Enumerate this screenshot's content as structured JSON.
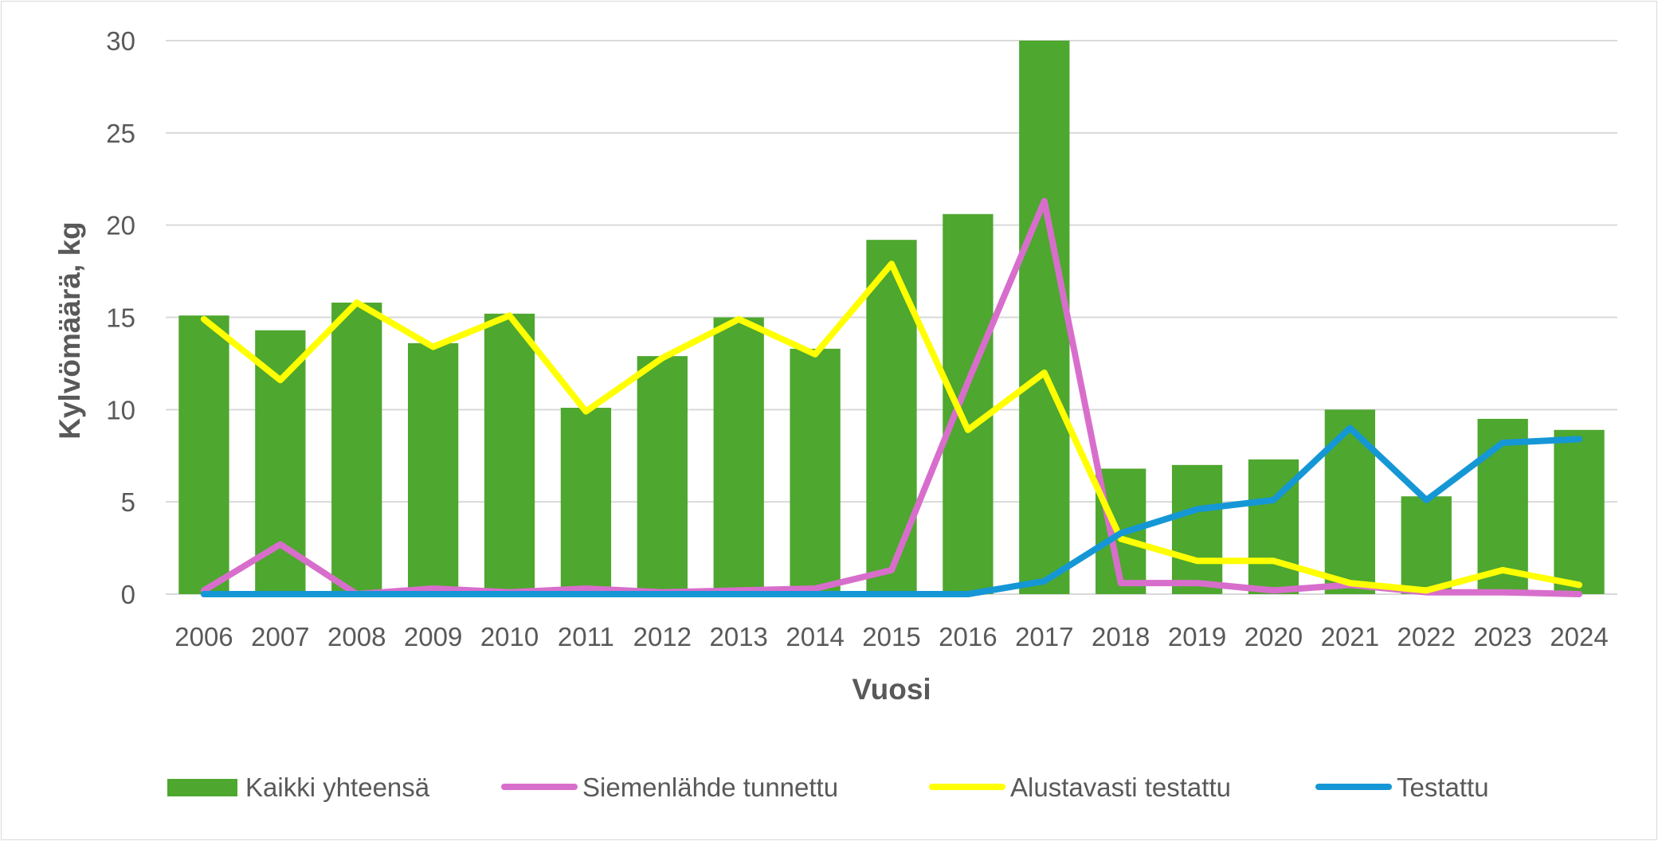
{
  "chart_data": {
    "type": "bar",
    "title": "",
    "xlabel": "Vuosi",
    "ylabel": "Kylvömäärä, kg",
    "ylim": [
      0,
      30
    ],
    "yticks": [
      "0",
      "5",
      "10",
      "15",
      "20",
      "25",
      "30"
    ],
    "grid": true,
    "legend": "bottom",
    "categories": [
      "2006",
      "2007",
      "2008",
      "2009",
      "2010",
      "2011",
      "2012",
      "2013",
      "2014",
      "2015",
      "2016",
      "2017",
      "2018",
      "2019",
      "2020",
      "2021",
      "2022",
      "2023",
      "2024"
    ],
    "bar_series": {
      "name": "Kaikki yhteensä",
      "color": "#4ea72e",
      "values": [
        15.1,
        14.3,
        15.8,
        13.6,
        15.2,
        10.1,
        12.9,
        15.0,
        13.3,
        19.2,
        20.6,
        30.0,
        6.8,
        7.0,
        7.3,
        10.0,
        5.3,
        9.5,
        8.9
      ]
    },
    "line_series": [
      {
        "name": "Siemenlähde tunnettu",
        "color": "#d86ecc",
        "values": [
          0.2,
          2.7,
          0.0,
          0.3,
          0.1,
          0.3,
          0.1,
          0.2,
          0.3,
          1.3,
          11.5,
          21.3,
          0.6,
          0.6,
          0.2,
          0.5,
          0.1,
          0.1,
          0.0
        ]
      },
      {
        "name": "Alustavasti testattu",
        "color": "#ffff00",
        "values": [
          14.9,
          11.6,
          15.8,
          13.4,
          15.1,
          9.9,
          12.8,
          14.9,
          13.0,
          17.9,
          8.9,
          12.0,
          3.0,
          1.8,
          1.8,
          0.6,
          0.2,
          1.3,
          0.5
        ]
      },
      {
        "name": "Testattu",
        "color": "#1597d6",
        "values": [
          0,
          0,
          0,
          0,
          0,
          0,
          0,
          0,
          0,
          0,
          0,
          0.7,
          3.3,
          4.6,
          5.1,
          9.0,
          5.1,
          8.2,
          8.4
        ]
      }
    ]
  }
}
